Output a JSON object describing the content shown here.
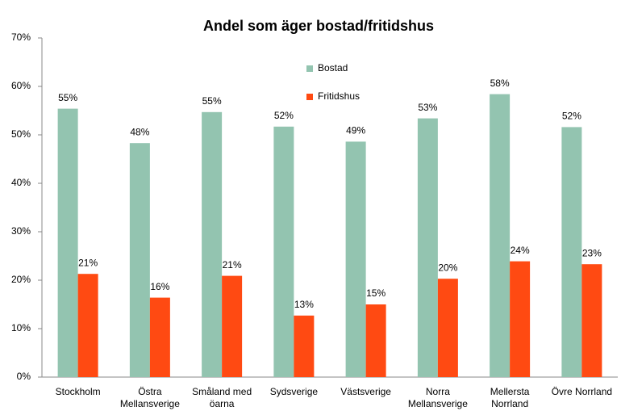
{
  "chart_data": {
    "type": "bar",
    "title": "Andel som äger bostad/fritidshus",
    "categories": [
      "Stockholm",
      "Östra Mellansverige",
      "Småland med öarna",
      "Sydsverige",
      "Västsverige",
      "Norra Mellansverige",
      "Mellersta Norrland",
      "Övre Norrland"
    ],
    "series": [
      {
        "name": "Bostad",
        "color": "#93c4b0",
        "values": [
          55.4,
          48.3,
          54.7,
          51.7,
          48.6,
          53.4,
          58.4,
          51.6
        ],
        "value_labels": [
          "55%",
          "48%",
          "55%",
          "52%",
          "49%",
          "53%",
          "58%",
          "52%"
        ]
      },
      {
        "name": "Fritidshus",
        "color": "#ff4a12",
        "values": [
          21.3,
          16.4,
          20.9,
          12.7,
          15.0,
          20.3,
          23.9,
          23.3
        ],
        "value_labels": [
          "21%",
          "16%",
          "21%",
          "13%",
          "15%",
          "20%",
          "24%",
          "23%"
        ]
      }
    ],
    "ylim": [
      0,
      70
    ],
    "yticks": [
      {
        "value": 0,
        "label": "0%"
      },
      {
        "value": 10,
        "label": "10%"
      },
      {
        "value": 20,
        "label": "20%"
      },
      {
        "value": 30,
        "label": "30%"
      },
      {
        "value": 40,
        "label": "40%"
      },
      {
        "value": 50,
        "label": "50%"
      },
      {
        "value": 60,
        "label": "60%"
      },
      {
        "value": 70,
        "label": "70%"
      }
    ],
    "grid": false,
    "legend": "top"
  }
}
